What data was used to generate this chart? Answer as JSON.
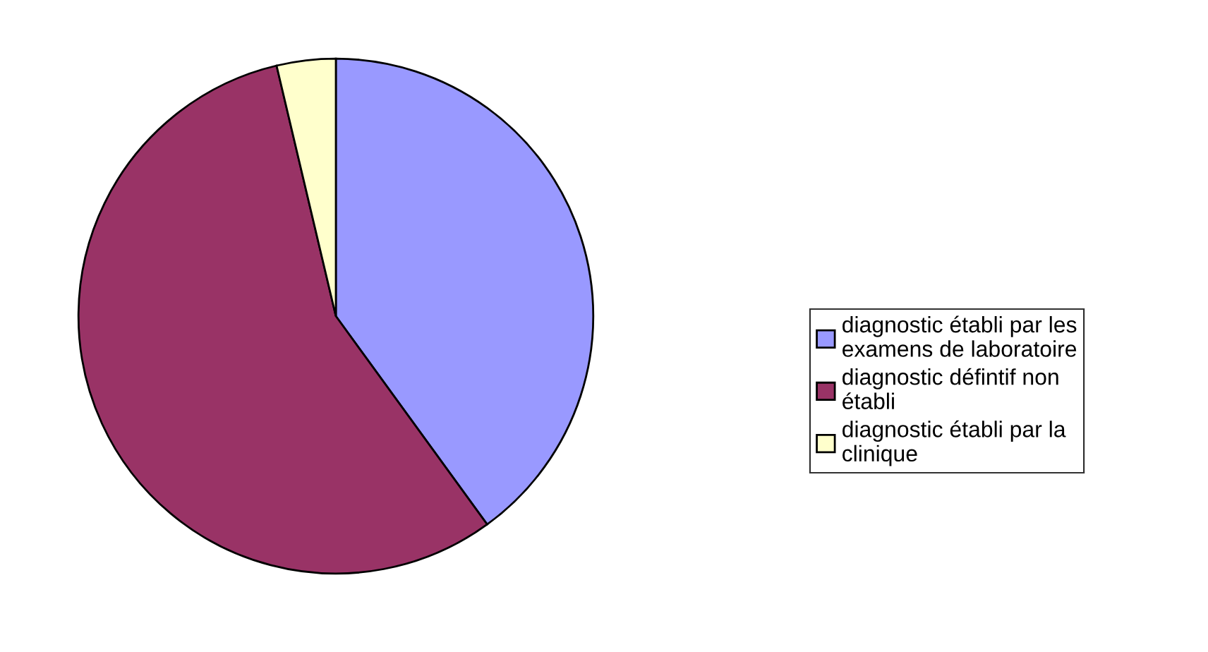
{
  "chart_data": {
    "type": "pie",
    "categories": [
      "diagnostic établi par les examens de laboratoire",
      "diagnostic défintif non établi",
      "diagnostic établi par la clinique"
    ],
    "values": [
      40,
      56.3,
      3.7
    ],
    "colors": [
      "#9999ff",
      "#993366",
      "#ffffcc"
    ],
    "legend": "right"
  }
}
